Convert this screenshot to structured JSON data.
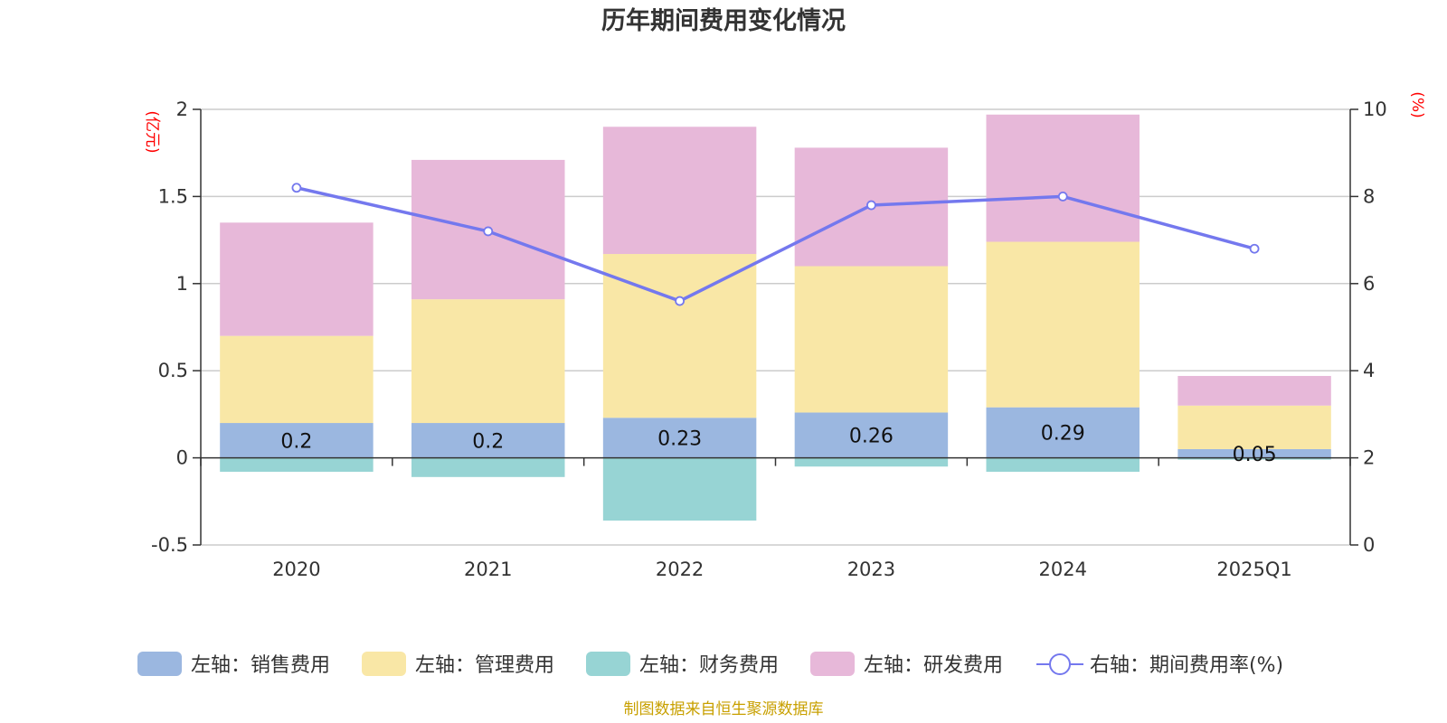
{
  "title": "历年期间费用变化情况",
  "source": "制图数据来自恒生聚源数据库",
  "left_unit": "(亿元)",
  "right_unit": "(%)",
  "chart_data": {
    "type": "bar",
    "stacked": true,
    "categories": [
      "2020",
      "2021",
      "2022",
      "2023",
      "2024",
      "2025Q1"
    ],
    "y_left": {
      "min": -0.5,
      "max": 2,
      "ticks": [
        "-0.5",
        "0",
        "0.5",
        "1",
        "1.5",
        "2"
      ]
    },
    "y_right": {
      "min": 0,
      "max": 10,
      "ticks": [
        "0",
        "2",
        "4",
        "6",
        "8",
        "10"
      ]
    },
    "series": [
      {
        "name": "左轴：销售费用",
        "type": "bar",
        "axis": "left",
        "color": "#9bb7e0",
        "values": [
          0.2,
          0.2,
          0.23,
          0.26,
          0.29,
          0.05
        ],
        "labels": [
          "0.2",
          "0.2",
          "0.23",
          "0.26",
          "0.29",
          "0.05"
        ]
      },
      {
        "name": "左轴：管理费用",
        "type": "bar",
        "axis": "left",
        "color": "#f9e7a6",
        "values": [
          0.5,
          0.71,
          0.94,
          0.84,
          0.95,
          0.25
        ]
      },
      {
        "name": "左轴：财务费用",
        "type": "bar",
        "axis": "left",
        "color": "#97d4d4",
        "values": [
          -0.08,
          -0.11,
          -0.36,
          -0.05,
          -0.08,
          -0.01
        ]
      },
      {
        "name": "左轴：研发费用",
        "type": "bar",
        "axis": "left",
        "color": "#e7b8d9",
        "values": [
          0.65,
          0.8,
          0.73,
          0.68,
          0.73,
          0.17
        ]
      },
      {
        "name": "右轴：期间费用率(%)",
        "type": "line",
        "axis": "right",
        "color": "#7478ee",
        "values": [
          8.2,
          7.2,
          5.6,
          7.8,
          8.0,
          6.8
        ]
      }
    ],
    "grid": true,
    "legend_position": "bottom"
  }
}
